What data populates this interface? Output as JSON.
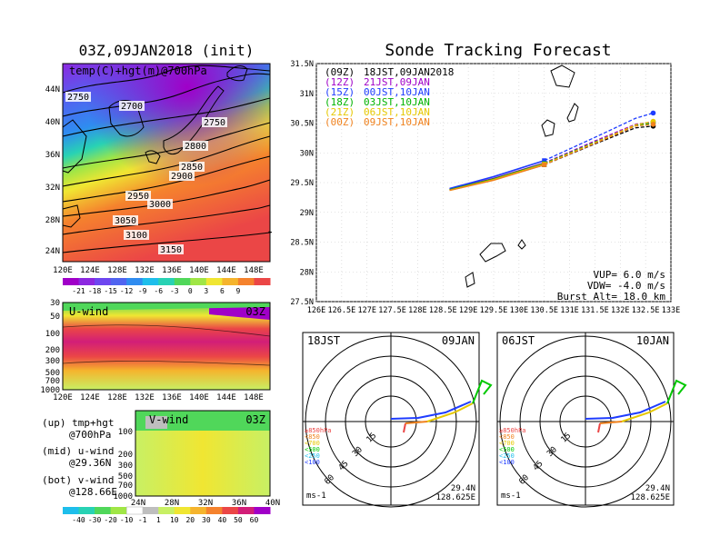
{
  "left_title": "03Z,09JAN2018 (init)",
  "right_title": "Sonde Tracking Forecast",
  "map700": {
    "label": "temp(C)+hgt(m)@700hPa",
    "lat_ticks": [
      "44N",
      "40N",
      "36N",
      "32N",
      "28N",
      "24N"
    ],
    "lon_ticks": [
      "120E",
      "124E",
      "128E",
      "132E",
      "136E",
      "140E",
      "144E",
      "148E"
    ],
    "contours": [
      "2750",
      "2700",
      "2750",
      "2800",
      "2850",
      "2900",
      "2950",
      "3000",
      "3050",
      "3100",
      "3150"
    ],
    "colorbar_ticks": [
      "-21",
      "-18",
      "-15",
      "-12",
      "-9",
      "-6",
      "-3",
      "0",
      "3",
      "6",
      "9"
    ],
    "colorbar_colors": [
      "#a000c8",
      "#8c28e0",
      "#6e46f0",
      "#5064f0",
      "#2f8cf0",
      "#1ebeeb",
      "#28d2b4",
      "#50d75a",
      "#a0e646",
      "#f0e632",
      "#f5b42d",
      "#f5822d",
      "#eb4646"
    ]
  },
  "uwind": {
    "label": "U-wind",
    "time": "03Z",
    "p_ticks": [
      "30",
      "50",
      "100",
      "200",
      "300",
      "500",
      "700",
      "1000"
    ],
    "lon_ticks": [
      "120E",
      "124E",
      "128E",
      "132E",
      "136E",
      "140E",
      "144E",
      "148E"
    ]
  },
  "vwind": {
    "label": "V-wind",
    "time": "03Z",
    "p_ticks": [
      "100",
      "200",
      "300",
      "500",
      "700",
      "1000"
    ],
    "lat_ticks": [
      "24N",
      "28N",
      "32N",
      "36N",
      "40N"
    ]
  },
  "legend_left": {
    "line1": "(up) tmp+hgt",
    "line2": "@700hPa",
    "line3": "(mid) u-wind",
    "line4": "@29.36N",
    "line5": "(bot) v-wind",
    "line6": "@128.66E"
  },
  "wind_colorbar": {
    "ticks": [
      "-40",
      "-30",
      "-20",
      "-10",
      "-1",
      "1",
      "10",
      "20",
      "30",
      "40",
      "50",
      "60"
    ],
    "colors": [
      "#1ebeeb",
      "#28d2b4",
      "#50d75a",
      "#a0e646",
      "#ffffff",
      "#bebebe",
      "#c8f064",
      "#f0e632",
      "#f5b42d",
      "#f5822d",
      "#eb4646",
      "#d21e78",
      "#a000c8"
    ]
  },
  "track": {
    "launches": [
      {
        "label": "(09Z)",
        "time": "18JST,09JAN2018",
        "color": "#000000"
      },
      {
        "label": "(12Z)",
        "time": "21JST,09JAN",
        "color": "#a000c8"
      },
      {
        "label": "(15Z)",
        "time": "00JST,10JAN",
        "color": "#1e3cff"
      },
      {
        "label": "(18Z)",
        "time": "03JST,10JAN",
        "color": "#00b400"
      },
      {
        "label": "(21Z)",
        "time": "06JST,10JAN",
        "color": "#e6c800"
      },
      {
        "label": "(00Z)",
        "time": "09JST,10JAN",
        "color": "#f0821e"
      }
    ],
    "lat_ticks": [
      "31.5N",
      "31N",
      "30.5N",
      "30N",
      "29.5N",
      "29N",
      "28.5N",
      "28N",
      "27.5N"
    ],
    "lon_ticks": [
      "126E",
      "126.5E",
      "127E",
      "127.5E",
      "128E",
      "128.5E",
      "129E",
      "129.5E",
      "130E",
      "130.5E",
      "131E",
      "131.5E",
      "132E",
      "132.5E",
      "133E"
    ],
    "vup": "VUP=  6.0 m/s",
    "vdw": "VDW= -4.0 m/s",
    "burst": "Burst Alt= 18.0 km"
  },
  "hodo_left": {
    "time_local": "18JST",
    "date": "09JAN",
    "lat": "29.4N",
    "lon": "128.625E",
    "unit": "ms-1"
  },
  "hodo_right": {
    "time_local": "06JST",
    "date": "10JAN",
    "lat": "29.4N",
    "lon": "128.625E",
    "unit": "ms-1"
  },
  "hodo_rings": [
    "15",
    "30",
    "45",
    "60"
  ],
  "hodo_levels": [
    {
      "label": "≥850hPa",
      "color": "#eb4646"
    },
    {
      "label": "<850",
      "color": "#f0821e"
    },
    {
      "label": "<700",
      "color": "#e6c800"
    },
    {
      "label": "<500",
      "color": "#00c800"
    },
    {
      "label": "<250",
      "color": "#1ebeeb"
    },
    {
      "label": "<100",
      "color": "#1e3cff"
    }
  ],
  "chart_data": {
    "type": "line",
    "title": "Sonde Tracking Forecast",
    "xlim": [
      126,
      133
    ],
    "ylim": [
      27.5,
      31.5
    ],
    "series": [
      {
        "name": "(09Z) 18JST,09JAN2018",
        "x": [
          128.63,
          129.5,
          130.5,
          131.5,
          132.3,
          132.65
        ],
        "y": [
          29.38,
          29.55,
          29.8,
          30.15,
          30.42,
          30.45
        ]
      },
      {
        "name": "(12Z) 21JST,09JAN",
        "x": [
          128.63,
          129.5,
          130.5,
          131.5,
          132.3,
          132.65
        ],
        "y": [
          29.39,
          29.57,
          29.83,
          30.2,
          30.48,
          30.52
        ]
      },
      {
        "name": "(15Z) 00JST,10JAN",
        "x": [
          128.63,
          129.5,
          130.5,
          131.5,
          132.3,
          132.65
        ],
        "y": [
          29.4,
          29.6,
          29.87,
          30.26,
          30.58,
          30.67
        ]
      },
      {
        "name": "(18Z) 03JST,10JAN",
        "x": [
          128.63,
          129.5,
          130.5,
          131.5,
          132.3,
          132.65
        ],
        "y": [
          29.38,
          29.56,
          29.82,
          30.18,
          30.46,
          30.5
        ]
      },
      {
        "name": "(21Z) 06JST,10JAN",
        "x": [
          128.63,
          129.5,
          130.5,
          131.5,
          132.3,
          132.65
        ],
        "y": [
          29.37,
          29.55,
          29.81,
          30.17,
          30.47,
          30.53
        ]
      },
      {
        "name": "(00Z) 09JST,10JAN",
        "x": [
          128.63,
          129.5,
          130.5,
          131.5,
          132.3,
          132.65
        ],
        "y": [
          29.37,
          29.54,
          29.8,
          30.16,
          30.45,
          30.48
        ]
      }
    ]
  }
}
